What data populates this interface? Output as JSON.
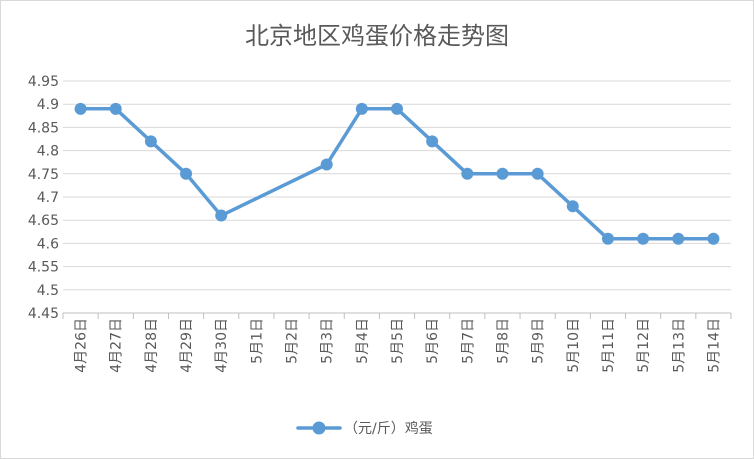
{
  "chart_data": {
    "type": "line",
    "title": "北京地区鸡蛋价格走势图",
    "categories": [
      "4月26日",
      "4月27日",
      "4月28日",
      "4月29日",
      "4月30日",
      "5月1日",
      "5月2日",
      "5月3日",
      "5月4日",
      "5月5日",
      "5月6日",
      "5月7日",
      "5月8日",
      "5月9日",
      "5月10日",
      "5月11日",
      "5月12日",
      "5月13日",
      "5月14日"
    ],
    "series": [
      {
        "name": "（元/斤）鸡蛋",
        "color": "#5b9bd5",
        "values": [
          4.89,
          4.89,
          4.82,
          4.75,
          4.66,
          null,
          null,
          4.77,
          4.89,
          4.89,
          4.82,
          4.75,
          4.75,
          4.75,
          4.68,
          4.61,
          4.61,
          4.61,
          4.61
        ]
      }
    ],
    "yticks": [
      "4.45",
      "4.5",
      "4.55",
      "4.6",
      "4.65",
      "4.7",
      "4.75",
      "4.8",
      "4.85",
      "4.9",
      "4.95"
    ],
    "ylim": [
      4.45,
      4.95
    ],
    "grid": true,
    "legend_position": "bottom",
    "xlabel": "",
    "ylabel": ""
  }
}
